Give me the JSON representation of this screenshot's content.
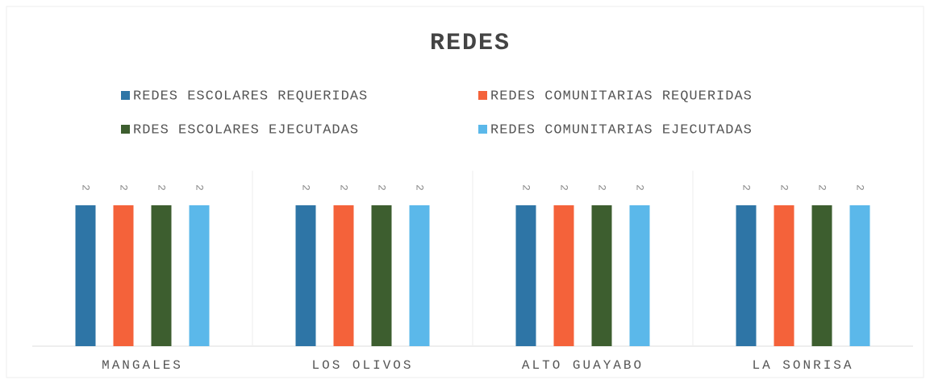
{
  "chart_data": {
    "type": "bar",
    "title": "REDES",
    "categories": [
      "MANGALES",
      "LOS OLIVOS",
      "ALTO GUAYABO",
      "LA SONRISA"
    ],
    "series": [
      {
        "name": "REDES ESCOLARES REQUERIDAS",
        "color": "#2e75a6",
        "values": [
          2,
          2,
          2,
          2
        ]
      },
      {
        "name": "REDES COMUNITARIAS REQUERIDAS",
        "color": "#f4623a",
        "values": [
          2,
          2,
          2,
          2
        ]
      },
      {
        "name": "RDES ESCOLARES EJECUTADAS",
        "color": "#3d5e2f",
        "values": [
          2,
          2,
          2,
          2
        ]
      },
      {
        "name": "REDES COMUNITARIAS EJECUTADAS",
        "color": "#5bb8ea",
        "values": [
          2,
          2,
          2,
          2
        ]
      }
    ]
  }
}
